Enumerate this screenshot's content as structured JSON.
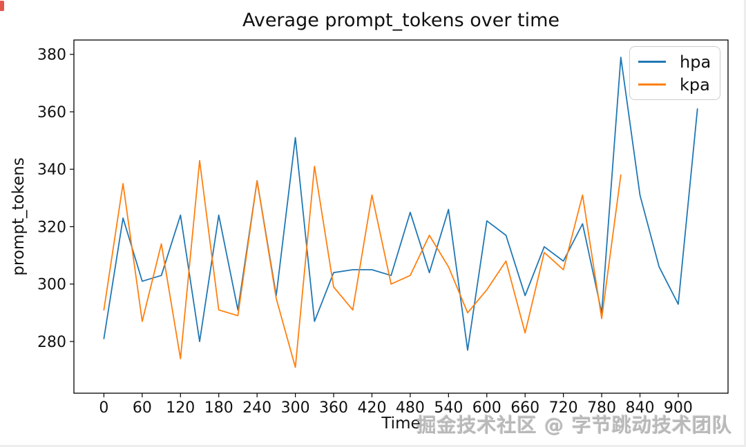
{
  "watermark": "掘金技术社区 @ 字节跳动技术团队",
  "chart_data": {
    "type": "line",
    "title": "Average prompt_tokens over time",
    "xlabel": "Time",
    "ylabel": "prompt_tokens",
    "grid": false,
    "legend_position": "upper right",
    "xlim": [
      -47,
      978
    ],
    "ylim": [
      262,
      385
    ],
    "xticks": [
      0,
      60,
      120,
      180,
      240,
      300,
      360,
      420,
      480,
      540,
      600,
      660,
      720,
      780,
      840,
      900
    ],
    "yticks": [
      280,
      300,
      320,
      340,
      360,
      380
    ],
    "series": [
      {
        "name": "hpa",
        "color": "#1f77b4",
        "x": [
          0,
          30,
          60,
          90,
          120,
          150,
          180,
          210,
          240,
          270,
          300,
          330,
          360,
          390,
          420,
          450,
          480,
          510,
          540,
          570,
          600,
          630,
          660,
          690,
          720,
          750,
          780,
          810,
          840,
          870,
          900,
          930
        ],
        "values": [
          281,
          323,
          301,
          303,
          324,
          280,
          324,
          291,
          336,
          296,
          351,
          287,
          304,
          305,
          305,
          303,
          325,
          304,
          326,
          277,
          322,
          317,
          296,
          313,
          308,
          321,
          290,
          379,
          331,
          306,
          293,
          361
        ]
      },
      {
        "name": "kpa",
        "color": "#ff7f0e",
        "x": [
          0,
          30,
          60,
          90,
          120,
          150,
          180,
          210,
          240,
          270,
          300,
          330,
          360,
          390,
          420,
          450,
          480,
          510,
          540,
          570,
          600,
          630,
          660,
          690,
          720,
          750,
          780,
          810
        ],
        "values": [
          291,
          335,
          287,
          314,
          274,
          343,
          291,
          289,
          336,
          295,
          271,
          341,
          299,
          291,
          331,
          300,
          303,
          317,
          306,
          290,
          298,
          308,
          283,
          311,
          305,
          331,
          288,
          338
        ]
      }
    ]
  }
}
